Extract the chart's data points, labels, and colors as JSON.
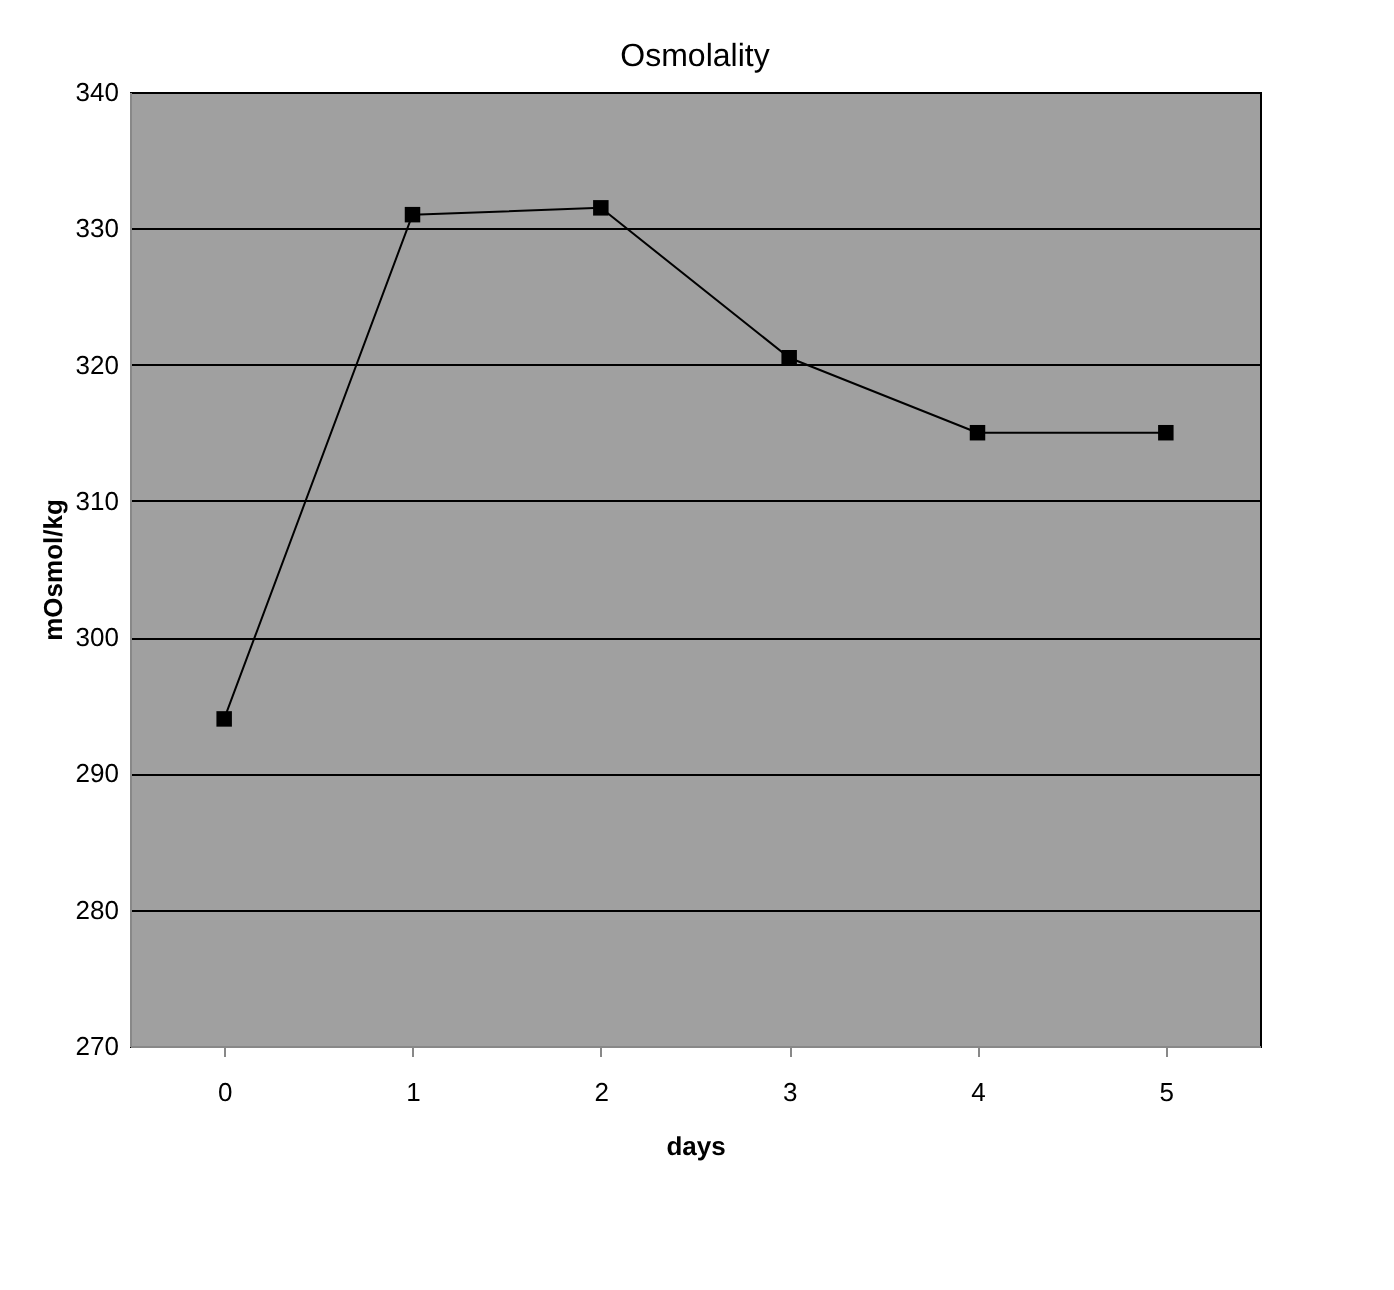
{
  "chart_data": {
    "type": "line",
    "title": "Osmolality",
    "xlabel": "days",
    "ylabel": "mOsmol/kg",
    "categories": [
      "0",
      "1",
      "2",
      "3",
      "4",
      "5"
    ],
    "series": [
      {
        "color": "#000000",
        "values": [
          294,
          331,
          331.5,
          320.5,
          315,
          315
        ]
      }
    ],
    "ylim": [
      270,
      340
    ],
    "yticks": [
      270,
      280,
      290,
      300,
      310,
      320,
      330,
      340
    ],
    "grid": "y",
    "marker": "square",
    "line_style": "solid"
  }
}
